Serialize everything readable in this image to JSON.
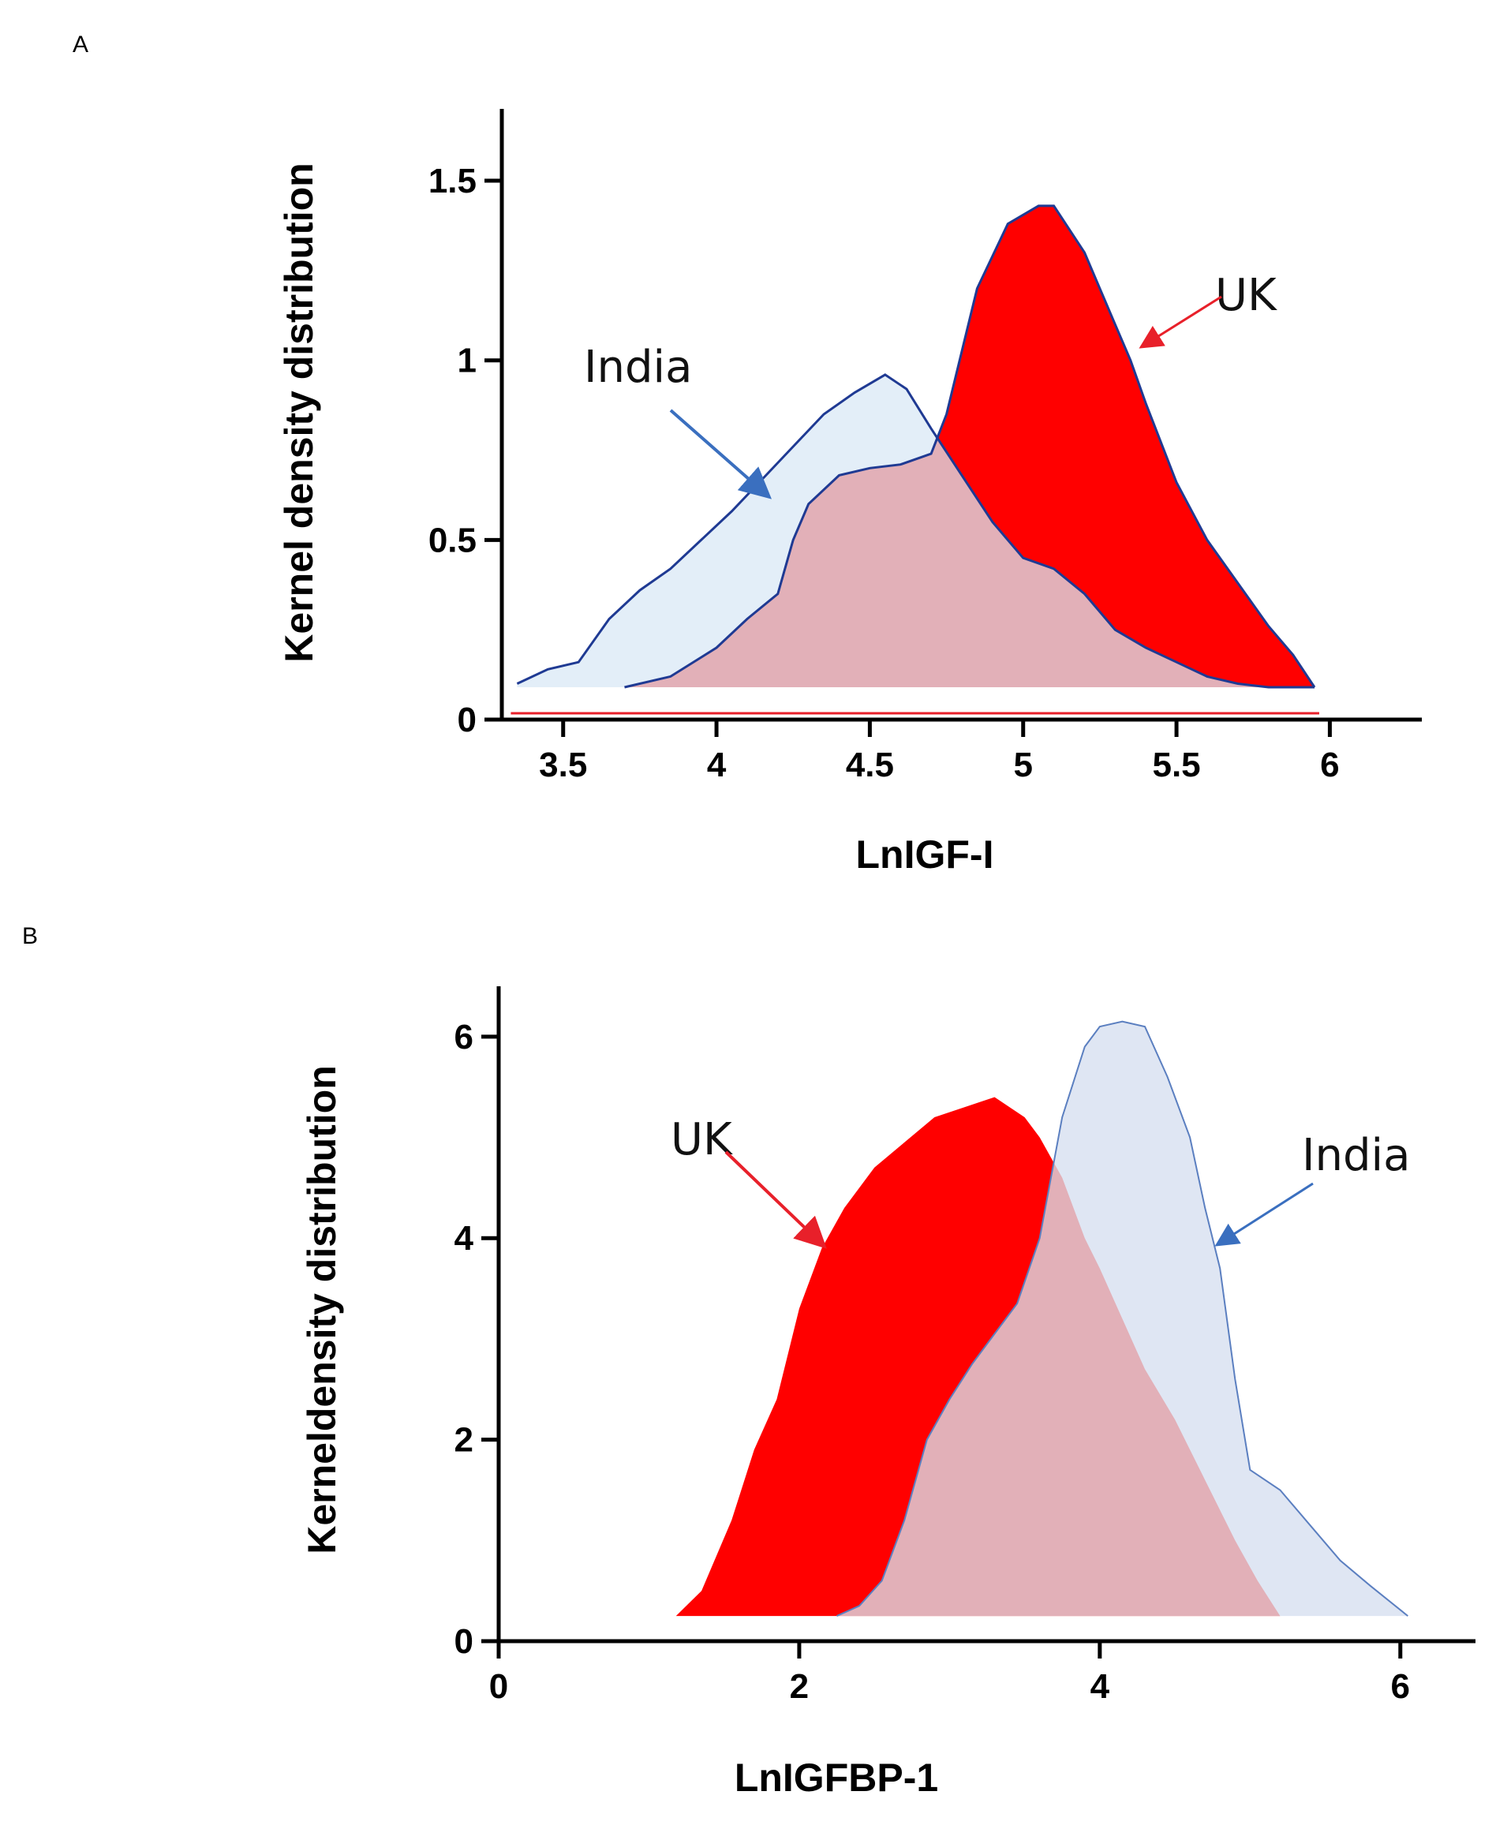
{
  "colors": {
    "uk_fill": "#ff0000",
    "india_fill": "#e3eef8",
    "overlap_fill": "#e2b0b8",
    "india_line": "#1f3a93",
    "india_arrow": "#3a6fbf",
    "uk_arrow": "#e8202a",
    "panel_b_india_fill": "#dfe6f3",
    "panel_b_india_line": "#5b7fc0"
  },
  "chart_data": [
    {
      "panel_label": "A",
      "type": "area",
      "xlabel": "LnIGF-I",
      "ylabel": "Kernel density distribution",
      "xlim": [
        3.3,
        6.3
      ],
      "ylim": [
        0,
        1.7
      ],
      "xticks": [
        3.5,
        4,
        4.5,
        5,
        5.5,
        6
      ],
      "xtick_labels": [
        "3.5",
        "4",
        "4.5",
        "5",
        "5.5",
        "6"
      ],
      "yticks": [
        0,
        0.5,
        1,
        1.5
      ],
      "ytick_labels": [
        "0",
        "0.5",
        "1",
        "1.5"
      ],
      "baseline": 0.09,
      "series": [
        {
          "name": "India",
          "x": [
            3.35,
            3.45,
            3.55,
            3.65,
            3.75,
            3.85,
            3.95,
            4.05,
            4.15,
            4.25,
            4.35,
            4.45,
            4.55,
            4.62,
            4.7,
            4.8,
            4.9,
            5.0,
            5.1,
            5.2,
            5.3,
            5.4,
            5.5,
            5.6,
            5.7,
            5.8,
            5.95
          ],
          "y": [
            0.1,
            0.14,
            0.16,
            0.28,
            0.36,
            0.42,
            0.5,
            0.58,
            0.67,
            0.76,
            0.85,
            0.91,
            0.96,
            0.92,
            0.81,
            0.68,
            0.55,
            0.45,
            0.42,
            0.35,
            0.25,
            0.2,
            0.16,
            0.12,
            0.1,
            0.09,
            0.09
          ]
        },
        {
          "name": "UK",
          "x": [
            3.7,
            3.85,
            4.0,
            4.1,
            4.2,
            4.25,
            4.3,
            4.4,
            4.5,
            4.6,
            4.7,
            4.75,
            4.85,
            4.95,
            5.05,
            5.1,
            5.2,
            5.3,
            5.35,
            5.4,
            5.5,
            5.6,
            5.7,
            5.8,
            5.88,
            5.95
          ],
          "y": [
            0.09,
            0.12,
            0.2,
            0.28,
            0.35,
            0.5,
            0.6,
            0.68,
            0.7,
            0.71,
            0.74,
            0.85,
            1.2,
            1.38,
            1.43,
            1.43,
            1.3,
            1.1,
            1.0,
            0.88,
            0.66,
            0.5,
            0.38,
            0.26,
            0.18,
            0.09
          ]
        }
      ],
      "annotations": [
        {
          "text": "India",
          "points_to": "India"
        },
        {
          "text": "UK",
          "points_to": "UK"
        }
      ]
    },
    {
      "panel_label": "B",
      "type": "area",
      "xlabel": "LnIGFBP-1",
      "ylabel": "Kerneldensity distribution",
      "xlim": [
        0,
        6.5
      ],
      "ylim": [
        0,
        6.5
      ],
      "xticks": [
        0,
        2,
        4,
        6
      ],
      "xtick_labels": [
        "0",
        "2",
        "4",
        "6"
      ],
      "yticks": [
        0,
        2,
        4,
        6
      ],
      "ytick_labels": [
        "0",
        "2",
        "4",
        "6"
      ],
      "baseline": 0.25,
      "series": [
        {
          "name": "UK",
          "x": [
            1.18,
            1.35,
            1.55,
            1.7,
            1.85,
            2.0,
            2.15,
            2.3,
            2.5,
            2.7,
            2.9,
            3.1,
            3.3,
            3.5,
            3.6,
            3.75,
            3.9,
            4.0,
            4.15,
            4.3,
            4.5,
            4.7,
            4.9,
            5.05,
            5.2
          ],
          "y": [
            0.25,
            0.5,
            1.2,
            1.9,
            2.4,
            3.3,
            3.9,
            4.3,
            4.7,
            4.95,
            5.2,
            5.3,
            5.4,
            5.2,
            5.0,
            4.6,
            4.0,
            3.7,
            3.2,
            2.7,
            2.2,
            1.6,
            1.0,
            0.6,
            0.25
          ]
        },
        {
          "name": "India",
          "x": [
            2.25,
            2.4,
            2.55,
            2.7,
            2.85,
            3.0,
            3.15,
            3.3,
            3.45,
            3.6,
            3.75,
            3.9,
            4.0,
            4.15,
            4.3,
            4.45,
            4.6,
            4.7,
            4.8,
            4.9,
            5.0,
            5.2,
            5.4,
            5.6,
            5.8,
            6.05
          ],
          "y": [
            0.25,
            0.35,
            0.6,
            1.2,
            2.0,
            2.4,
            2.75,
            3.05,
            3.35,
            4.0,
            5.2,
            5.9,
            6.1,
            6.15,
            6.1,
            5.6,
            5.0,
            4.3,
            3.7,
            2.6,
            1.7,
            1.5,
            1.15,
            0.8,
            0.55,
            0.25
          ]
        }
      ],
      "annotations": [
        {
          "text": "UK",
          "points_to": "UK"
        },
        {
          "text": "India",
          "points_to": "India"
        }
      ]
    }
  ]
}
